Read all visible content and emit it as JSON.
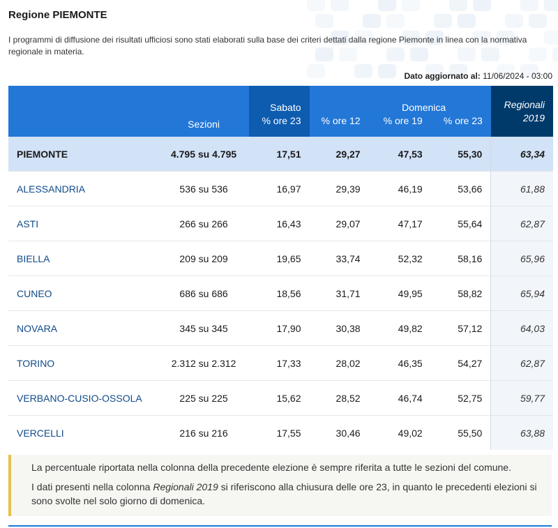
{
  "header": {
    "title": "Regione PIEMONTE",
    "description": "I programmi di diffusione dei risultati ufficiosi sono stati elaborati sulla base dei criteri dettati dalla regione Piemonte in linea con la normativa regionale in materia.",
    "updated_label": "Dato aggiornato al:",
    "updated_value": "11/06/2024 - 03:00"
  },
  "table": {
    "headers": {
      "sezioni": "Sezioni",
      "sabato": "Sabato",
      "sab_ore23": "% ore 23",
      "domenica": "Domenica",
      "dom_ore12": "% ore 12",
      "dom_ore19": "% ore 19",
      "dom_ore23": "% ore 23",
      "regionali": "Regionali",
      "regionali_year": "2019"
    },
    "total": {
      "name": "PIEMONTE",
      "sezioni": "4.795 su 4.795",
      "sab23": "17,51",
      "dom12": "29,27",
      "dom19": "47,53",
      "dom23": "55,30",
      "reg2019": "63,34"
    },
    "rows": [
      {
        "name": "ALESSANDRIA",
        "sezioni": "536 su 536",
        "sab23": "16,97",
        "dom12": "29,39",
        "dom19": "46,19",
        "dom23": "53,66",
        "reg2019": "61,88"
      },
      {
        "name": "ASTI",
        "sezioni": "266 su 266",
        "sab23": "16,43",
        "dom12": "29,07",
        "dom19": "47,17",
        "dom23": "55,64",
        "reg2019": "62,87"
      },
      {
        "name": "BIELLA",
        "sezioni": "209 su 209",
        "sab23": "19,65",
        "dom12": "33,74",
        "dom19": "52,32",
        "dom23": "58,16",
        "reg2019": "65,96"
      },
      {
        "name": "CUNEO",
        "sezioni": "686 su 686",
        "sab23": "18,56",
        "dom12": "31,71",
        "dom19": "49,95",
        "dom23": "58,82",
        "reg2019": "65,94"
      },
      {
        "name": "NOVARA",
        "sezioni": "345 su 345",
        "sab23": "17,90",
        "dom12": "30,38",
        "dom19": "49,82",
        "dom23": "57,12",
        "reg2019": "64,03"
      },
      {
        "name": "TORINO",
        "sezioni": "2.312 su 2.312",
        "sab23": "17,33",
        "dom12": "28,02",
        "dom19": "46,35",
        "dom23": "54,27",
        "reg2019": "62,87"
      },
      {
        "name": "VERBANO-CUSIO-OSSOLA",
        "sezioni": "225 su 225",
        "sab23": "15,62",
        "dom12": "28,52",
        "dom19": "46,74",
        "dom23": "52,75",
        "reg2019": "59,77"
      },
      {
        "name": "VERCELLI",
        "sezioni": "216 su 216",
        "sab23": "17,55",
        "dom12": "30,46",
        "dom19": "49,02",
        "dom23": "55,50",
        "reg2019": "63,88"
      }
    ]
  },
  "notes": {
    "note1": "La percentuale riportata nella colonna della precedente elezione è sempre riferita a tutte le sezioni del comune.",
    "note2_pre": "I dati presenti nella colonna ",
    "note2_italic": "Regionali 2019",
    "note2_post": " si riferiscono alla chiusura delle ore 23, in quanto le precedenti elezioni si sono svolte nel solo giorno di domenica."
  },
  "colors": {
    "header_blue": "#2277d7",
    "sabato_blue": "#0d5cb0",
    "regionali_navy": "#003a6b",
    "total_row": "#d2e2f7",
    "note_accent": "#e6c04a",
    "link_blue": "#0f4a8a"
  }
}
